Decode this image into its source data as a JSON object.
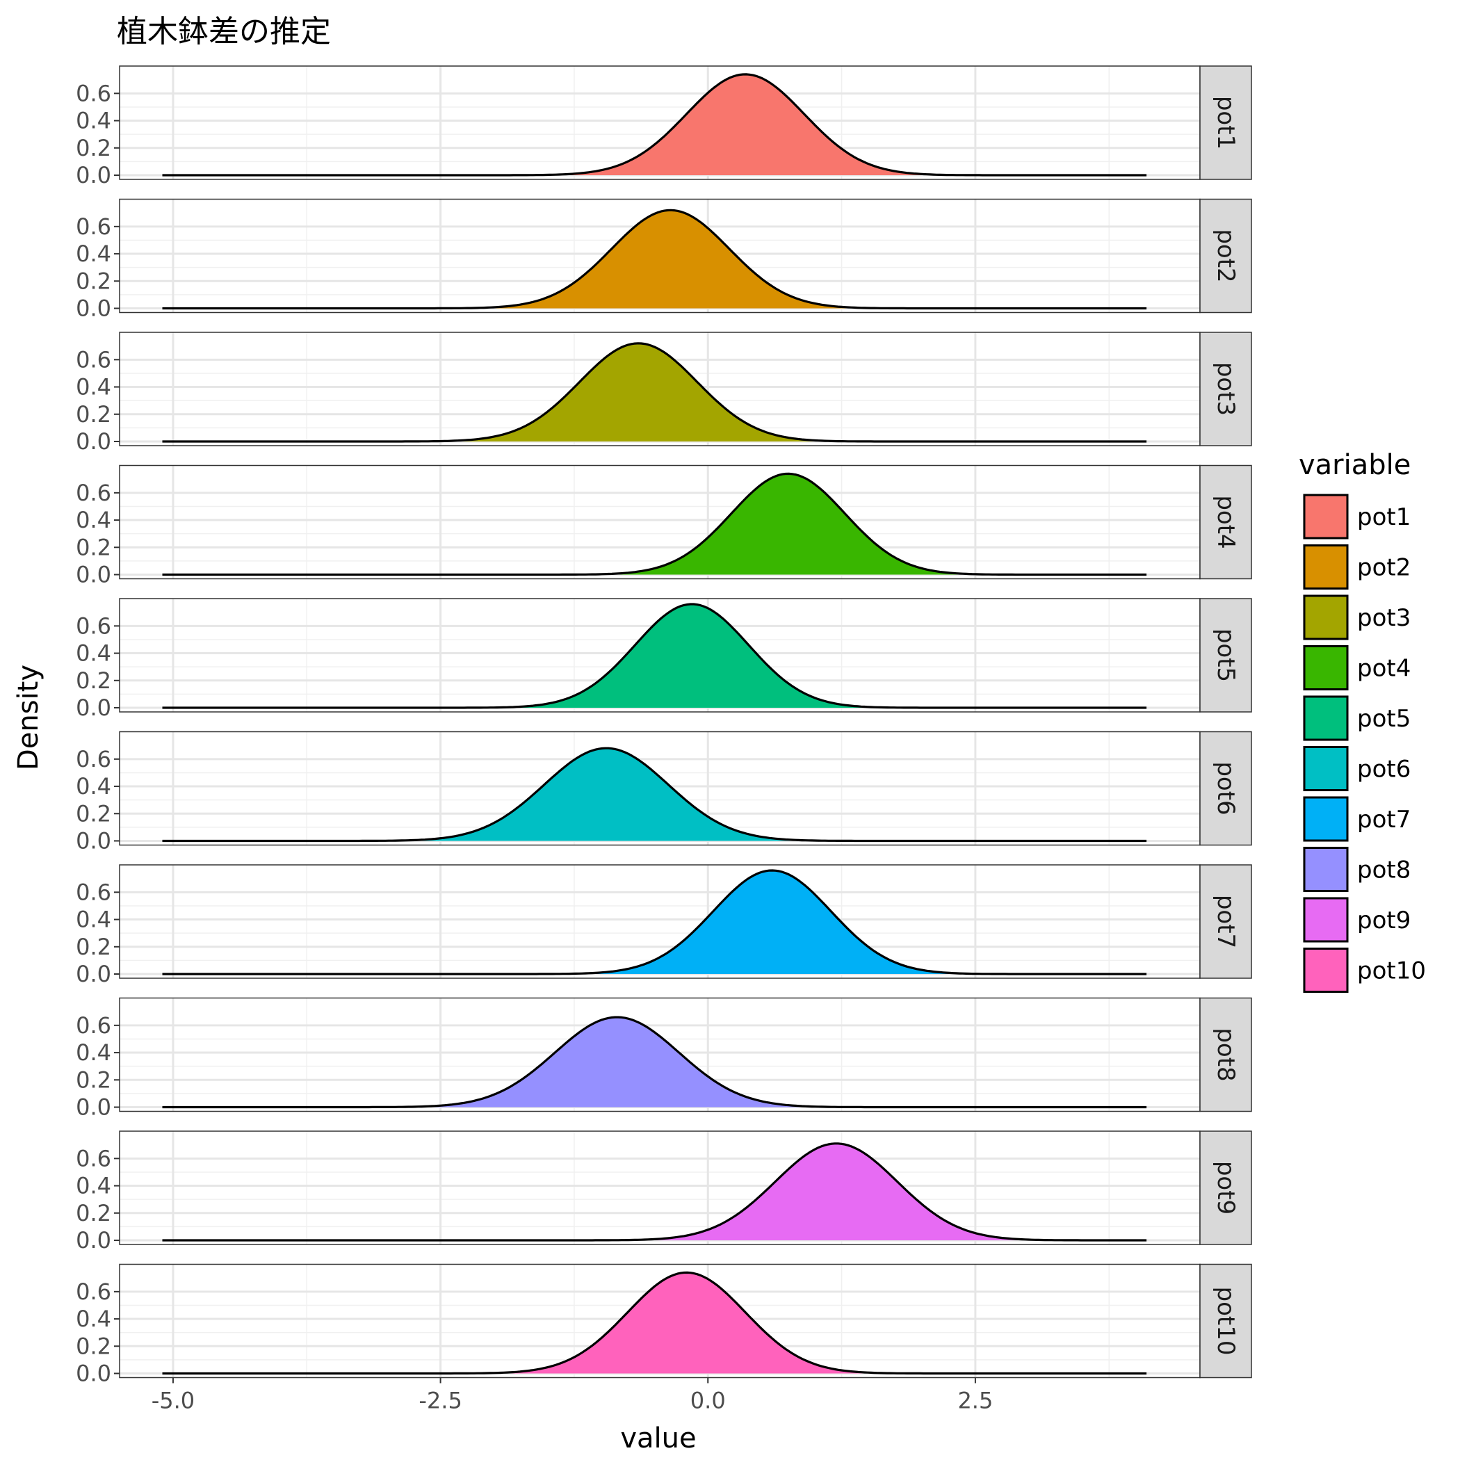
{
  "chart_data": {
    "type": "area",
    "subtype": "faceted-density",
    "title": "植木鉢差の推定",
    "xlabel": "value",
    "ylabel": "Density",
    "xlim": [
      -5.5,
      4.6
    ],
    "ylim": [
      0,
      0.77
    ],
    "x_ticks": [
      -5.0,
      -2.5,
      0.0,
      2.5
    ],
    "x_tick_labels": [
      "-5.0",
      "-2.5",
      "0.0",
      "2.5"
    ],
    "y_ticks": [
      0.0,
      0.2,
      0.4,
      0.6
    ],
    "y_tick_labels": [
      "0.0",
      "0.2",
      "0.4",
      "0.6"
    ],
    "x_range_drawn": [
      -5.1,
      4.1
    ],
    "grid": true,
    "legend": {
      "title": "variable",
      "position": "right"
    },
    "series": [
      {
        "name": "pot1",
        "color": "#F8766D",
        "mean": 0.35,
        "sd": 0.55,
        "peak": 0.74
      },
      {
        "name": "pot2",
        "color": "#D89000",
        "mean": -0.35,
        "sd": 0.55,
        "peak": 0.72
      },
      {
        "name": "pot3",
        "color": "#A3A500",
        "mean": -0.65,
        "sd": 0.55,
        "peak": 0.72
      },
      {
        "name": "pot4",
        "color": "#39B600",
        "mean": 0.75,
        "sd": 0.53,
        "peak": 0.74
      },
      {
        "name": "pot5",
        "color": "#00BF7D",
        "mean": -0.15,
        "sd": 0.53,
        "peak": 0.76
      },
      {
        "name": "pot6",
        "color": "#00BFC4",
        "mean": -0.95,
        "sd": 0.58,
        "peak": 0.68
      },
      {
        "name": "pot7",
        "color": "#00B0F6",
        "mean": 0.6,
        "sd": 0.55,
        "peak": 0.76
      },
      {
        "name": "pot8",
        "color": "#9590FF",
        "mean": -0.85,
        "sd": 0.58,
        "peak": 0.66
      },
      {
        "name": "pot9",
        "color": "#E76BF3",
        "mean": 1.2,
        "sd": 0.57,
        "peak": 0.71
      },
      {
        "name": "pot10",
        "color": "#FF62BC",
        "mean": -0.2,
        "sd": 0.55,
        "peak": 0.74
      }
    ]
  }
}
